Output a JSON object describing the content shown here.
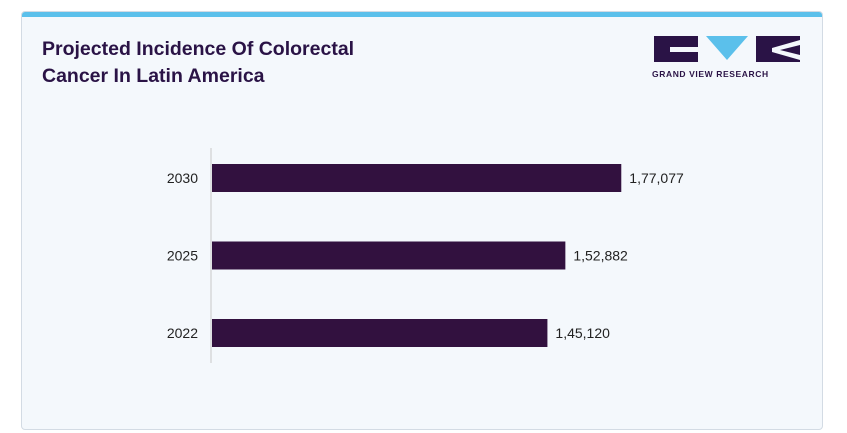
{
  "brand": {
    "name": "GRAND VIEW RESEARCH",
    "logo_icon": "gvr-logo-icon",
    "colors": {
      "dark": "#2a1346",
      "accent": "#5bc0eb"
    }
  },
  "chart_data": {
    "type": "bar",
    "orientation": "horizontal",
    "title_lines": [
      "Projected Incidence Of Colorectal",
      "Cancer In Latin America"
    ],
    "categories": [
      "2030",
      "2025",
      "2022"
    ],
    "values": [
      177077,
      152882,
      145120
    ],
    "value_labels": [
      "1,77,077",
      "1,52,882",
      "1,45,120"
    ],
    "xlim": [
      0,
      212000
    ],
    "grid": false,
    "bar_color": "#32113f",
    "xlabel": "",
    "ylabel": ""
  }
}
